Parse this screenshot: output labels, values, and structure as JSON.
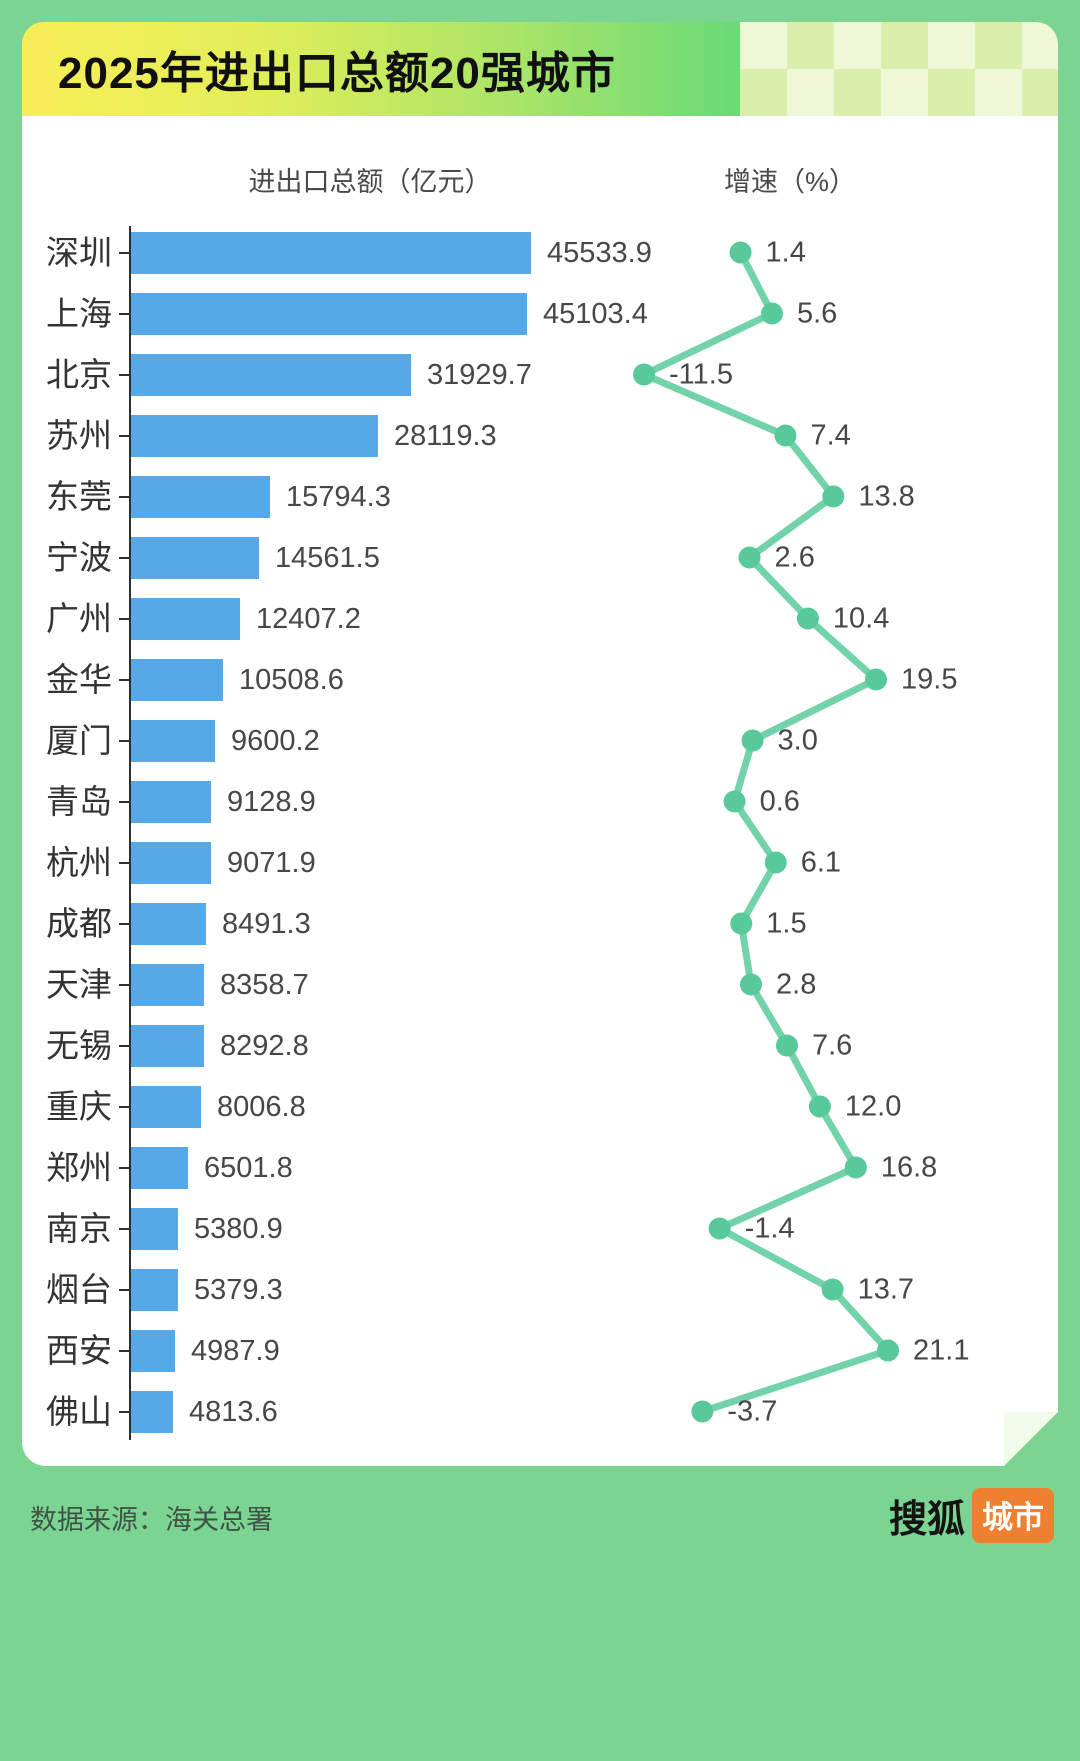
{
  "header": {
    "title": "2025年进出口总额20强城市"
  },
  "columns": {
    "left": "进出口总额（亿元）",
    "right": "增速（%）"
  },
  "chart_data": {
    "type": "bar",
    "orientation": "horizontal",
    "title": "2025年进出口总额20强城市",
    "categories": [
      "深圳",
      "上海",
      "北京",
      "苏州",
      "东莞",
      "宁波",
      "广州",
      "金华",
      "厦门",
      "青岛",
      "杭州",
      "成都",
      "天津",
      "无锡",
      "重庆",
      "郑州",
      "南京",
      "烟台",
      "西安",
      "佛山"
    ],
    "series": [
      {
        "name": "进出口总额（亿元）",
        "type": "bar",
        "values": [
          45533.9,
          45103.4,
          31929.7,
          28119.3,
          15794.3,
          14561.5,
          12407.2,
          10508.6,
          9600.2,
          9128.9,
          9071.9,
          8491.3,
          8358.7,
          8292.8,
          8006.8,
          6501.8,
          5380.9,
          5379.3,
          4987.9,
          4813.6
        ]
      },
      {
        "name": "增速（%）",
        "type": "line",
        "values": [
          1.4,
          5.6,
          -11.5,
          7.4,
          13.8,
          2.6,
          10.4,
          19.5,
          3.0,
          0.6,
          6.1,
          1.5,
          2.8,
          7.6,
          12.0,
          16.8,
          -1.4,
          13.7,
          21.1,
          -3.7
        ]
      }
    ],
    "bar_xlim": [
      0,
      45533.9
    ],
    "line_xlim": [
      -11.5,
      21.1
    ],
    "grid": false,
    "value_labels": true,
    "legend_position": "column-headers"
  },
  "footer": {
    "source": "数据来源：海关总署",
    "logo_text": "搜狐",
    "logo_badge": "城市"
  },
  "colors": {
    "background": "#7cd492",
    "card": "#ffffff",
    "bar": "#57a8e7",
    "line": "#72d3aa",
    "dot": "#57c99b",
    "axis": "#2f2f2f",
    "label": "#474747",
    "badge": "#ee8030"
  }
}
